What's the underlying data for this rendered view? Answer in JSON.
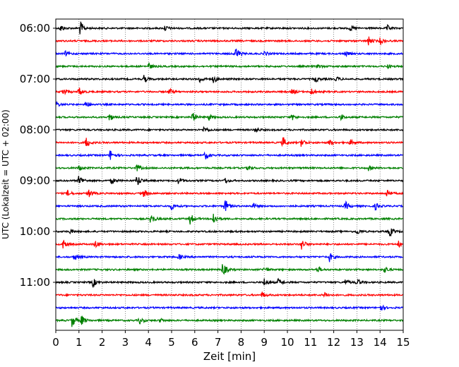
{
  "chart_data": {
    "type": "line",
    "title": "",
    "xlabel": "Zeit  [min]",
    "ylabel": "UTC (Lokalzeit = UTC + 02:00)",
    "xlim": [
      0,
      15
    ],
    "x_ticks": [
      "0",
      "1",
      "2",
      "3",
      "4",
      "5",
      "6",
      "7",
      "8",
      "9",
      "10",
      "11",
      "12",
      "13",
      "14",
      "15"
    ],
    "y_ticks": [
      "06:00",
      "07:00",
      "08:00",
      "09:00",
      "10:00",
      "11:00"
    ],
    "row_interval_min": 15,
    "row_count": 24,
    "first_row_time": "06:00",
    "trace_color_cycle": [
      "#000000",
      "#ff0000",
      "#0000ff",
      "#008000"
    ],
    "grid": "vertical dotted",
    "events": [
      {
        "row": 0,
        "events": [
          [
            0.2,
            0.5
          ],
          [
            1.05,
            1.0
          ],
          [
            4.7,
            0.4
          ],
          [
            12.7,
            0.4
          ],
          [
            14.3,
            0.4
          ]
        ]
      },
      {
        "row": 1,
        "events": [
          [
            13.5,
            0.6
          ],
          [
            14.0,
            0.4
          ]
        ]
      },
      {
        "row": 2,
        "events": [
          [
            0.4,
            0.3
          ],
          [
            7.75,
            1.0
          ],
          [
            9.0,
            0.3
          ],
          [
            12.5,
            0.3
          ]
        ]
      },
      {
        "row": 3,
        "events": [
          [
            4.0,
            0.5
          ],
          [
            11.3,
            0.3
          ],
          [
            14.3,
            0.3
          ]
        ]
      },
      {
        "row": 4,
        "events": [
          [
            3.8,
            0.5
          ],
          [
            6.2,
            0.5
          ],
          [
            6.8,
            0.5
          ],
          [
            11.2,
            0.4
          ],
          [
            12.1,
            0.3
          ]
        ]
      },
      {
        "row": 5,
        "events": [
          [
            0.3,
            0.6
          ],
          [
            1.0,
            0.6
          ],
          [
            4.9,
            0.4
          ],
          [
            10.2,
            0.4
          ],
          [
            11.0,
            0.5
          ]
        ]
      },
      {
        "row": 6,
        "events": [
          [
            0.0,
            0.4
          ],
          [
            1.3,
            0.5
          ]
        ]
      },
      {
        "row": 7,
        "events": [
          [
            2.3,
            0.6
          ],
          [
            5.9,
            0.7
          ],
          [
            6.6,
            0.4
          ],
          [
            10.2,
            0.4
          ],
          [
            12.3,
            0.4
          ]
        ]
      },
      {
        "row": 8,
        "events": [
          [
            6.4,
            0.5
          ],
          [
            8.6,
            0.4
          ]
        ]
      },
      {
        "row": 9,
        "events": [
          [
            1.3,
            0.8
          ],
          [
            9.8,
            0.8
          ],
          [
            10.6,
            0.6
          ],
          [
            11.8,
            0.5
          ],
          [
            12.7,
            0.4
          ]
        ]
      },
      {
        "row": 10,
        "events": [
          [
            2.35,
            0.8
          ],
          [
            6.45,
            0.6
          ]
        ]
      },
      {
        "row": 11,
        "events": [
          [
            1.0,
            0.4
          ],
          [
            3.5,
            0.5
          ],
          [
            8.3,
            0.4
          ],
          [
            13.5,
            0.3
          ]
        ]
      },
      {
        "row": 12,
        "events": [
          [
            1.0,
            0.9
          ],
          [
            2.4,
            0.5
          ],
          [
            3.5,
            0.9
          ],
          [
            5.3,
            0.5
          ],
          [
            7.3,
            0.4
          ]
        ]
      },
      {
        "row": 13,
        "events": [
          [
            0.5,
            0.4
          ],
          [
            1.4,
            0.6
          ],
          [
            3.8,
            0.6
          ],
          [
            14.3,
            0.6
          ]
        ]
      },
      {
        "row": 14,
        "events": [
          [
            5.0,
            0.5
          ],
          [
            7.3,
            1.0
          ],
          [
            8.5,
            0.4
          ],
          [
            12.5,
            0.6
          ],
          [
            13.8,
            0.5
          ]
        ]
      },
      {
        "row": 15,
        "events": [
          [
            4.1,
            0.8
          ],
          [
            5.8,
            0.8
          ],
          [
            6.8,
            0.9
          ]
        ]
      },
      {
        "row": 16,
        "events": [
          [
            0.6,
            0.3
          ],
          [
            13.0,
            0.4
          ],
          [
            14.4,
            0.8
          ]
        ]
      },
      {
        "row": 17,
        "events": [
          [
            0.3,
            0.6
          ],
          [
            1.7,
            0.5
          ],
          [
            10.6,
            0.8
          ],
          [
            14.8,
            0.4
          ]
        ]
      },
      {
        "row": 18,
        "events": [
          [
            0.8,
            0.5
          ],
          [
            5.3,
            0.4
          ],
          [
            11.8,
            0.7
          ]
        ]
      },
      {
        "row": 19,
        "events": [
          [
            7.2,
            1.0
          ],
          [
            9.0,
            0.4
          ],
          [
            11.3,
            0.4
          ],
          [
            14.2,
            0.5
          ]
        ]
      },
      {
        "row": 20,
        "events": [
          [
            1.6,
            0.6
          ],
          [
            9.0,
            0.5
          ],
          [
            9.6,
            0.5
          ],
          [
            12.5,
            0.4
          ],
          [
            13.0,
            0.5
          ]
        ]
      },
      {
        "row": 21,
        "events": [
          [
            8.9,
            0.4
          ],
          [
            11.6,
            0.4
          ]
        ]
      },
      {
        "row": 22,
        "events": [
          [
            14.0,
            0.5
          ]
        ]
      },
      {
        "row": 23,
        "events": [
          [
            0.7,
            0.9
          ],
          [
            1.1,
            0.7
          ],
          [
            3.6,
            0.5
          ],
          [
            4.5,
            0.3
          ]
        ]
      }
    ]
  }
}
